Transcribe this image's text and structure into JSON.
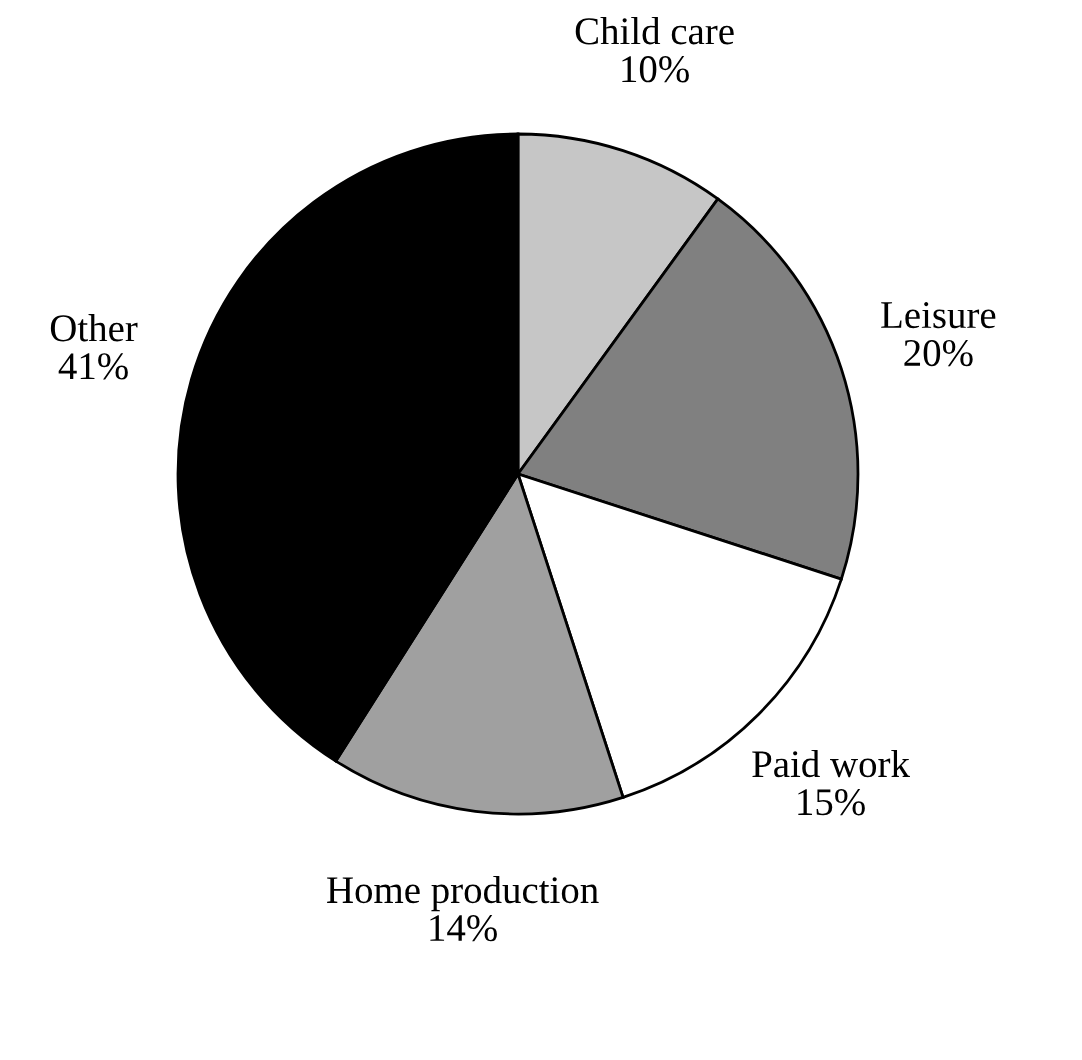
{
  "chart_data": {
    "type": "pie",
    "categories": [
      "Child care",
      "Leisure",
      "Paid work",
      "Home production",
      "Other"
    ],
    "values": [
      10,
      20,
      15,
      14,
      41
    ],
    "value_labels": [
      "10%",
      "20%",
      "15%",
      "14%",
      "41%"
    ],
    "colors": [
      "#c6c6c6",
      "#808080",
      "#ffffff",
      "#a0a0a0",
      "#000000"
    ]
  }
}
